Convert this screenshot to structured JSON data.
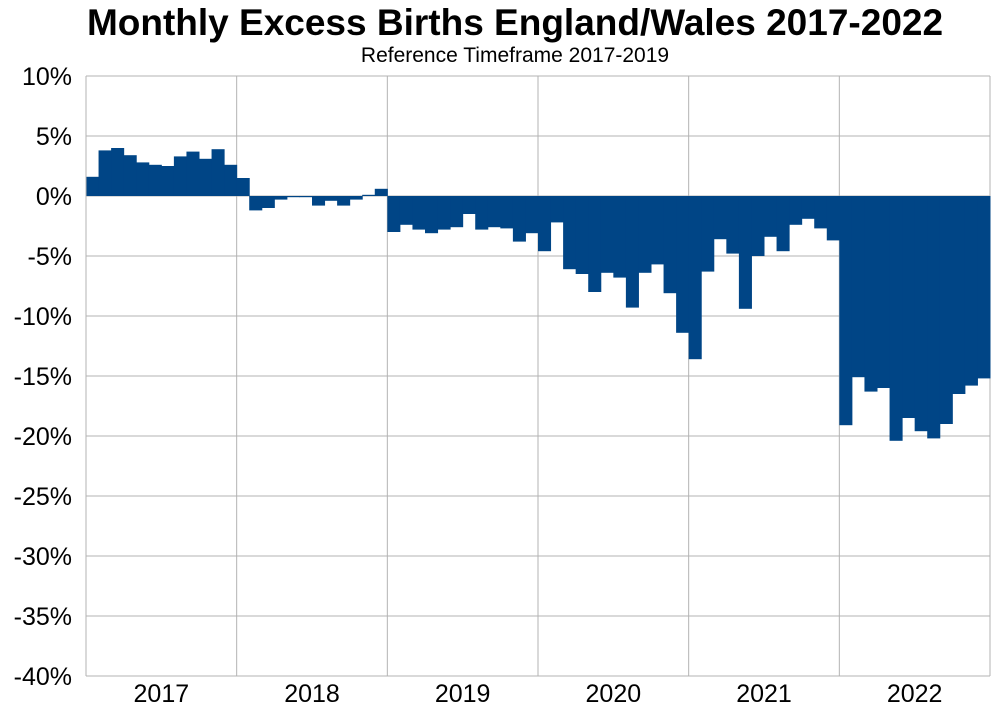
{
  "chart_data": {
    "type": "bar",
    "title": "Monthly Excess Births England/Wales 2017-2022",
    "subtitle": "Reference Timeframe 2017-2019",
    "xlabel": "",
    "ylabel": "",
    "ylim": [
      -40,
      10
    ],
    "yticks": [
      10,
      5,
      0,
      -5,
      -10,
      -15,
      -20,
      -25,
      -30,
      -35,
      -40
    ],
    "ytick_labels": [
      "10%",
      "5%",
      "0%",
      "-5%",
      "-10%",
      "-15%",
      "-20%",
      "-25%",
      "-30%",
      "-35%",
      "-40%"
    ],
    "xtick_labels": [
      "2017",
      "2018",
      "2019",
      "2020",
      "2021",
      "2022"
    ],
    "grid": true,
    "bar_color": "#004586",
    "series": [
      {
        "values": [
          1.6,
          3.8,
          4.0,
          3.4,
          2.8,
          2.6,
          2.5,
          3.3,
          3.7,
          3.1,
          3.9,
          2.6,
          1.5,
          -1.2,
          -1.0,
          -0.3,
          -0.1,
          -0.1,
          -0.8,
          -0.4,
          -0.8,
          -0.3,
          0.1,
          0.6,
          -3.0,
          -2.4,
          -2.8,
          -3.1,
          -2.8,
          -2.6,
          -1.5,
          -2.8,
          -2.6,
          -2.7,
          -3.8,
          -3.1,
          -4.6,
          -2.2,
          -6.1,
          -6.5,
          -8.0,
          -6.4,
          -6.8,
          -9.3,
          -6.4,
          -5.7,
          -8.1,
          -11.4,
          -13.6,
          -6.3,
          -3.6,
          -4.8,
          -9.4,
          -5.0,
          -3.4,
          -4.6,
          -2.4,
          -1.9,
          -2.7,
          -3.7,
          -19.1,
          -15.1,
          -16.3,
          -16.0,
          -20.4,
          -18.5,
          -19.6,
          -20.2,
          -19.0,
          -16.5,
          -15.8,
          -15.2
        ]
      }
    ]
  }
}
